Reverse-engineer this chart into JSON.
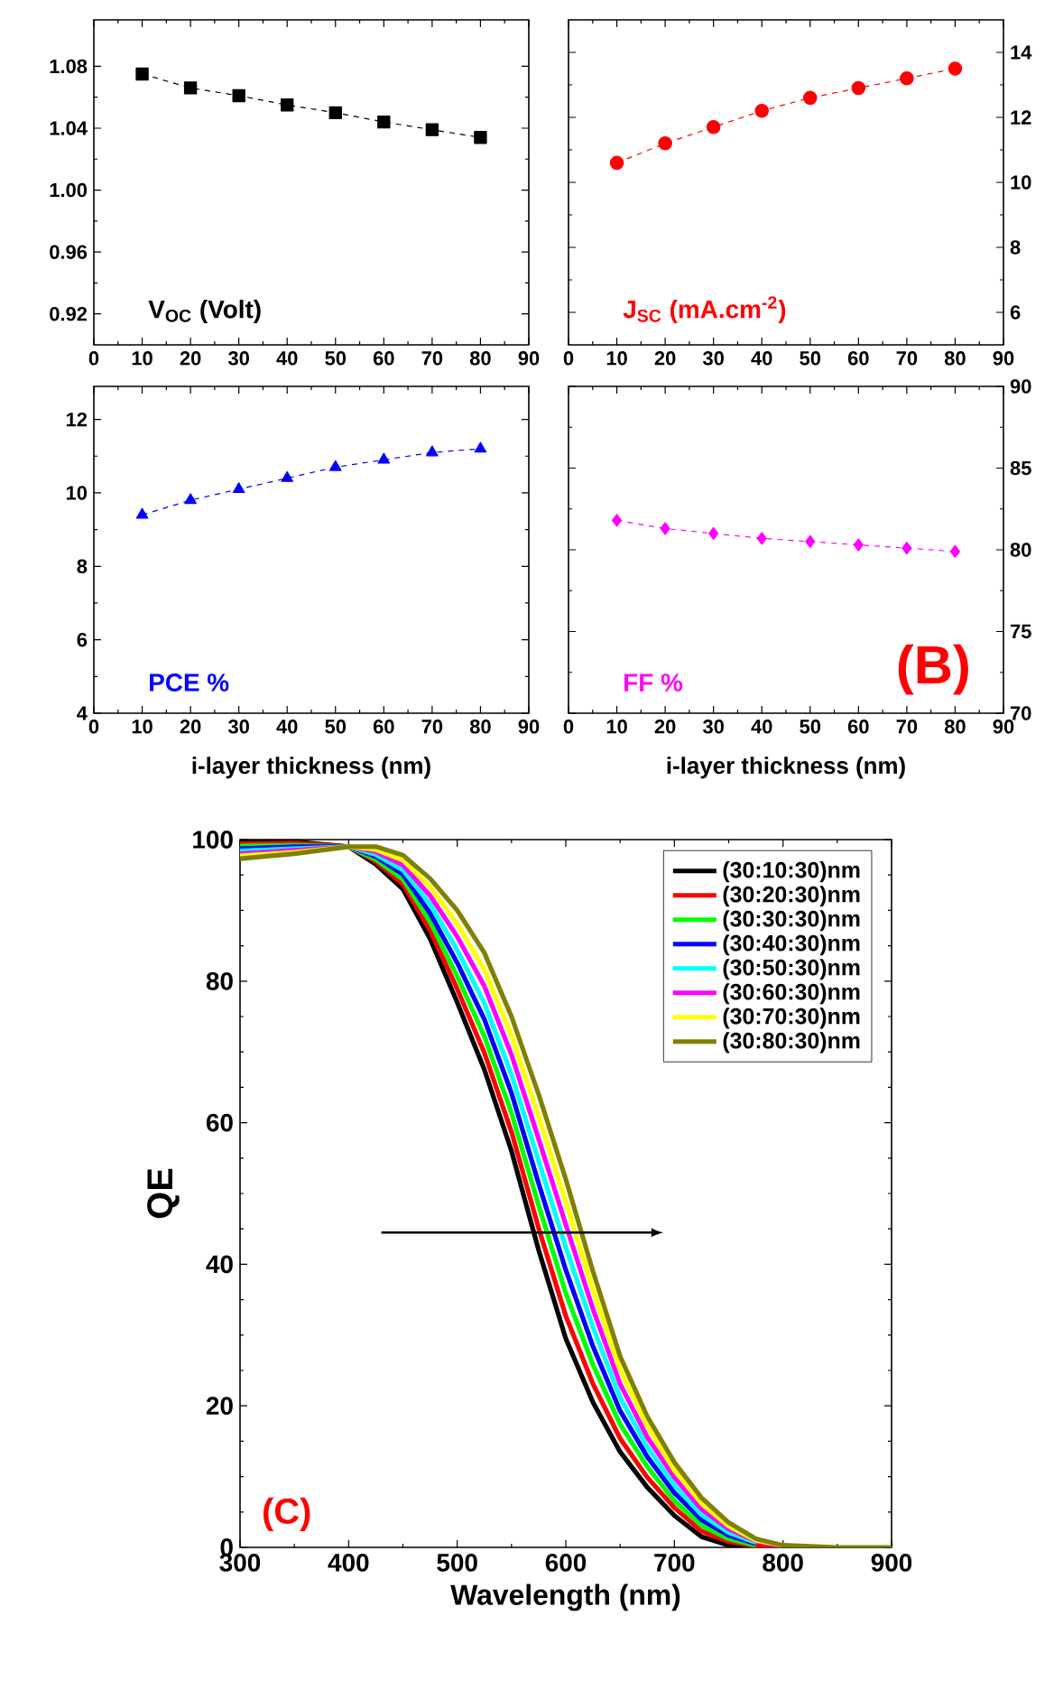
{
  "chart_data": [
    {
      "type": "line",
      "x": [
        10,
        20,
        30,
        40,
        50,
        60,
        70,
        80
      ],
      "series": [
        {
          "color": "#000000",
          "values": [
            1.075,
            1.066,
            1.061,
            1.055,
            1.05,
            1.044,
            1.039,
            1.034
          ]
        }
      ],
      "xlim": [
        0,
        90
      ],
      "xticks": [
        0,
        10,
        20,
        30,
        40,
        50,
        60,
        70,
        80,
        90
      ],
      "ylim": [
        0.9,
        1.11
      ],
      "yticks": [
        0.92,
        0.96,
        {
          "value": 1.0,
          "label": "1.00"
        },
        1.04,
        1.08
      ],
      "marker": "square",
      "line_style": "dashed",
      "legend": false,
      "annotations": [
        "V$_{OC}$ (Volt)"
      ]
    },
    {
      "type": "line",
      "x": [
        10,
        20,
        30,
        40,
        50,
        60,
        70,
        80
      ],
      "series": [
        {
          "color": "#ff0000",
          "axis": "y2",
          "values": [
            10.6,
            11.2,
            11.7,
            12.2,
            12.6,
            12.9,
            13.2,
            13.5
          ]
        }
      ],
      "xlim": [
        0,
        90
      ],
      "xticks": [
        0,
        10,
        20,
        30,
        40,
        50,
        60,
        70,
        80,
        90
      ],
      "y2lim": [
        5,
        15
      ],
      "y2ticks": [
        6,
        8,
        10,
        12,
        14
      ],
      "marker": "circle",
      "line_style": "dashed",
      "legend": false,
      "annotations": [
        "J$_{SC}$ (mA.cm$^{-2}$)"
      ]
    },
    {
      "type": "line",
      "x": [
        10,
        20,
        30,
        40,
        50,
        60,
        70,
        80
      ],
      "xlabel": "i-layer thickness (nm)",
      "series": [
        {
          "color": "#0000ff",
          "values": [
            9.4,
            9.8,
            10.1,
            10.4,
            10.7,
            10.9,
            11.1,
            11.2
          ]
        }
      ],
      "xlim": [
        0,
        90
      ],
      "xticks": [
        0,
        10,
        20,
        30,
        40,
        50,
        60,
        70,
        80,
        90
      ],
      "ylim": [
        4,
        12.9
      ],
      "yticks": [
        4,
        6,
        8,
        10,
        12
      ],
      "marker": "triangle",
      "line_style": "dashed",
      "legend": false,
      "annotations": [
        "PCE %"
      ]
    },
    {
      "type": "line",
      "x": [
        10,
        20,
        30,
        40,
        50,
        60,
        70,
        80
      ],
      "xlabel": "i-layer thickness (nm)",
      "series": [
        {
          "color": "#ff00ff",
          "axis": "y2",
          "values": [
            81.8,
            81.3,
            81.0,
            80.7,
            80.5,
            80.3,
            80.1,
            79.9
          ]
        }
      ],
      "xlim": [
        0,
        90
      ],
      "xticks": [
        0,
        10,
        20,
        30,
        40,
        50,
        60,
        70,
        80,
        90
      ],
      "y2lim": [
        70,
        90
      ],
      "y2ticks": [
        70,
        75,
        80,
        85,
        90
      ],
      "marker": "diamond",
      "line_style": "dashed",
      "legend": false,
      "annotations": [
        "FF %",
        "(B)"
      ]
    },
    {
      "type": "line",
      "xlabel": "Wavelength (nm)",
      "ylabel": "QE",
      "x": [
        300,
        350,
        400,
        425,
        450,
        475,
        500,
        525,
        550,
        575,
        600,
        625,
        650,
        675,
        700,
        725,
        750,
        775,
        800,
        850,
        900
      ],
      "series": [
        {
          "name": "(30:10:30)nm",
          "color": "#000000",
          "values": [
            99.8,
            99.7,
            99.0,
            96.5,
            93,
            86,
            77,
            67.5,
            56,
            42,
            29.5,
            20.5,
            13.5,
            8.5,
            4.5,
            1.5,
            0.3,
            0,
            0,
            null,
            null
          ]
        },
        {
          "name": "(30:20:30)nm",
          "color": "#ff0000",
          "values": [
            99.4,
            99.5,
            99.0,
            96.9,
            93.7,
            87.2,
            78.9,
            69.9,
            58.7,
            45.1,
            32.7,
            23.1,
            15.4,
            9.9,
            5.6,
            2.3,
            0.8,
            0.2,
            0,
            null,
            null
          ]
        },
        {
          "name": "(30:30:30)nm",
          "color": "#00ff00",
          "values": [
            99.1,
            99.2,
            99.0,
            97.2,
            94.4,
            88.4,
            80.7,
            72.2,
            61.4,
            48.3,
            35.9,
            25.8,
            17.4,
            11.4,
            6.6,
            3.1,
            1.2,
            0.3,
            null,
            null,
            null
          ]
        },
        {
          "name": "(30:40:30)nm",
          "color": "#0000ff",
          "values": [
            98.7,
            99.0,
            99.0,
            97.6,
            95.1,
            89.6,
            82.6,
            74.6,
            64.2,
            51.4,
            39.2,
            28.4,
            19.3,
            12.8,
            7.7,
            3.9,
            1.7,
            0.5,
            null,
            null,
            null
          ]
        },
        {
          "name": "(30:50:30)nm",
          "color": "#00ffff",
          "values": [
            98.4,
            98.7,
            99.0,
            97.9,
            95.7,
            90.9,
            84.4,
            76.9,
            66.8,
            54.6,
            42.4,
            31.1,
            21.2,
            14.2,
            8.8,
            4.6,
            2.1,
            0.7,
            null,
            null,
            null
          ]
        },
        {
          "name": "(30:60:30)nm",
          "color": "#ff00ff",
          "values": [
            98.0,
            98.5,
            99.0,
            98.3,
            96.4,
            92.1,
            86.3,
            79.3,
            69.6,
            57.7,
            45.6,
            33.7,
            23.1,
            15.6,
            9.9,
            5.4,
            2.6,
            0.9,
            0.2,
            null,
            null
          ]
        },
        {
          "name": "(30:70:30)nm",
          "color": "#ffff00",
          "values": [
            97.7,
            98.2,
            99.0,
            98.6,
            97.1,
            93.3,
            88.1,
            81.6,
            72.3,
            60.9,
            48.8,
            36.4,
            25.1,
            17.1,
            10.9,
            6.2,
            3.0,
            1.0,
            0.3,
            null,
            null
          ]
        },
        {
          "name": "(30:80:30)nm",
          "color": "#808000",
          "values": [
            97.3,
            98.0,
            99.0,
            99.0,
            97.8,
            94.5,
            90,
            84,
            75,
            64,
            52,
            39,
            27,
            18.5,
            12,
            7,
            3.5,
            1.2,
            0.3,
            0,
            0
          ]
        }
      ],
      "xlim": [
        300,
        900
      ],
      "xticks": [
        300,
        400,
        500,
        600,
        700,
        800,
        900
      ],
      "ylim": [
        0,
        100
      ],
      "yticks": [
        0,
        20,
        40,
        60,
        80,
        100
      ],
      "marker": "none",
      "line_style": "solid",
      "legend": "top right",
      "annotations": [
        "(C)"
      ]
    }
  ]
}
